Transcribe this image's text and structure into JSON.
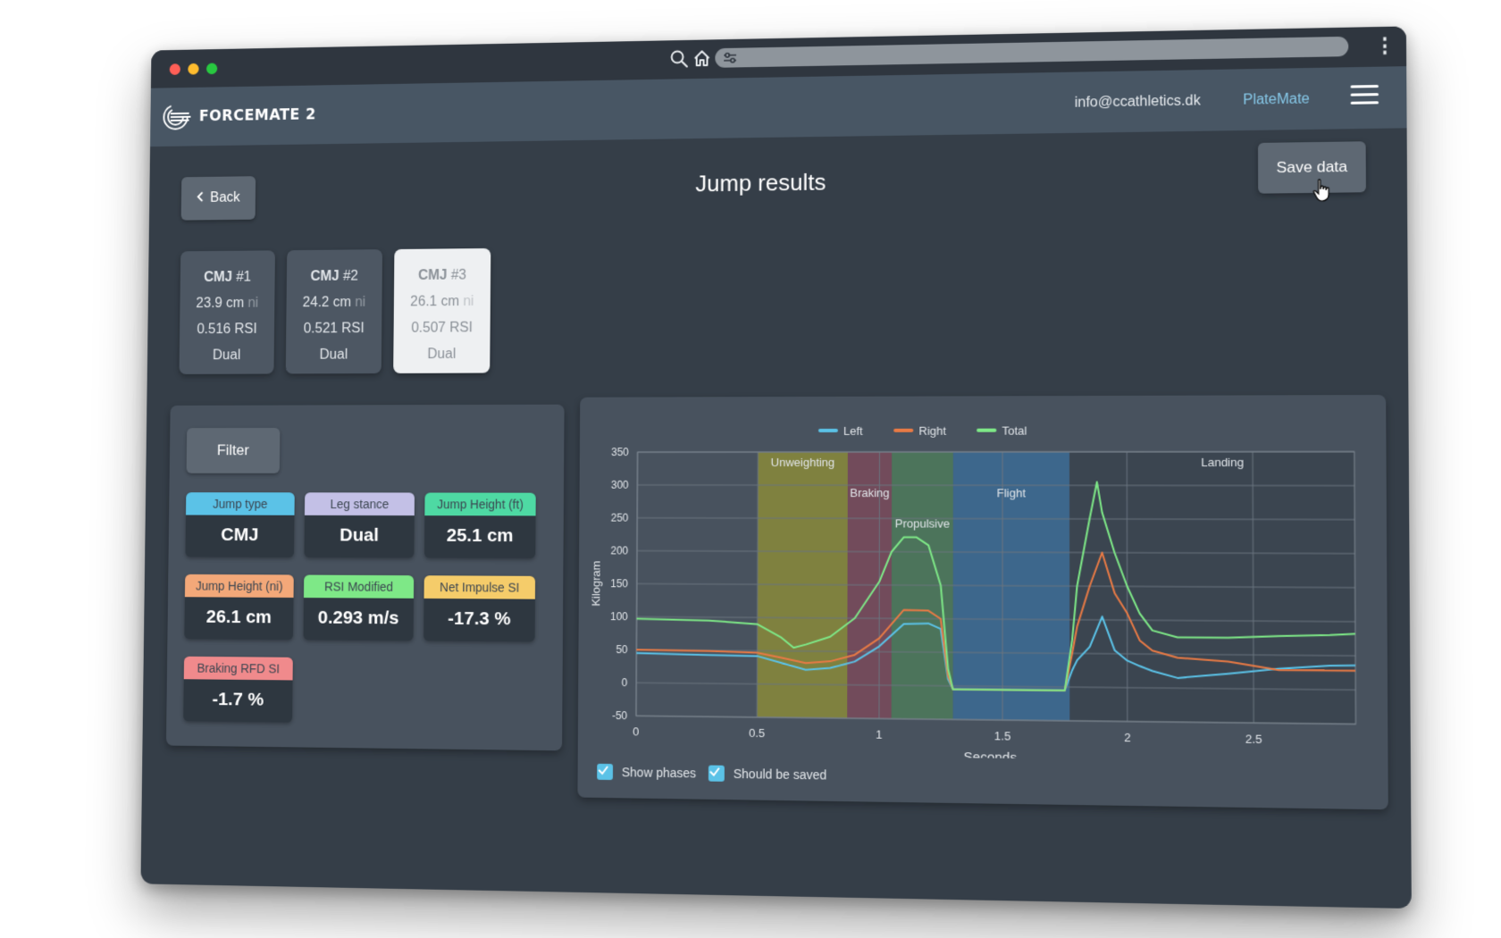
{
  "app": {
    "name": "FORCEMATE 2",
    "email": "info@ccathletics.dk",
    "platemate": "PlateMate"
  },
  "page": {
    "title": "Jump results",
    "back_label": "Back",
    "save_label": "Save data"
  },
  "jumps": [
    {
      "type": "CMJ",
      "num": "#1",
      "height": "23.9 cm",
      "unit": "ni",
      "rsi_value": "0.516",
      "rsi_label": "RSI",
      "stance": "Dual",
      "selected": false
    },
    {
      "type": "CMJ",
      "num": "#2",
      "height": "24.2 cm",
      "unit": "ni",
      "rsi_value": "0.521",
      "rsi_label": "RSI",
      "stance": "Dual",
      "selected": false
    },
    {
      "type": "CMJ",
      "num": "#3",
      "height": "26.1 cm",
      "unit": "ni",
      "rsi_value": "0.507",
      "rsi_label": "RSI",
      "stance": "Dual",
      "selected": true
    }
  ],
  "filter": {
    "button_label": "Filter",
    "metrics": [
      {
        "label": "Jump type",
        "value": "CMJ",
        "color": "#5bc2e7"
      },
      {
        "label": "Leg stance",
        "value": "Dual",
        "color": "#c3c0e6"
      },
      {
        "label": "Jump Height (ft)",
        "value": "25.1 cm",
        "color": "#4ed9a3"
      },
      {
        "label": "Jump Height (ni)",
        "value": "26.1 cm",
        "color": "#f3a879"
      },
      {
        "label": "RSI Modified",
        "value": "0.293 m/s",
        "color": "#7ee887"
      },
      {
        "label": "Net Impulse SI",
        "value": "-17.3 %",
        "color": "#f5cc6a"
      },
      {
        "label": "Braking RFD SI",
        "value": "-1.7 %",
        "color": "#f08a8c"
      }
    ]
  },
  "options": {
    "show_phases": "Show phases",
    "should_be_saved": "Should be saved"
  },
  "colors": {
    "left": "#5bc2e7",
    "right": "#e87a45",
    "total": "#7ee887",
    "window_bg": "#353e48",
    "panel_bg": "#48525e",
    "accent": "#86c8e8"
  },
  "icons": [
    "search-icon",
    "home-icon",
    "tune-icon",
    "more-vertical-icon",
    "hamburger-menu-icon",
    "chevron-left-icon",
    "pointer-cursor-icon",
    "checkbox-checked-icon"
  ],
  "chart_data": {
    "type": "line",
    "xlabel": "Seconds",
    "ylabel": "Kilogram",
    "xlim": [
      0,
      2.9
    ],
    "ylim": [
      -50,
      350
    ],
    "xticks": [
      0,
      0.5,
      1,
      1.5,
      2,
      2.5
    ],
    "yticks": [
      -50,
      0,
      50,
      100,
      150,
      200,
      250,
      300,
      350
    ],
    "grid": true,
    "legend_position": "top-center",
    "phases": [
      {
        "name": "Unweighting",
        "start": 0.5,
        "end": 0.87,
        "color": "#8a8a3a"
      },
      {
        "name": "Braking",
        "start": 0.87,
        "end": 1.05,
        "color": "#7a4a5a"
      },
      {
        "name": "Propulsive",
        "start": 1.05,
        "end": 1.3,
        "color": "#4d7a5a"
      },
      {
        "name": "Flight",
        "start": 1.3,
        "end": 1.77,
        "color": "#3c6b94"
      },
      {
        "name": "Landing",
        "start": 1.77,
        "end": 2.9,
        "color": "#3a434d"
      }
    ],
    "series": [
      {
        "name": "Left",
        "x": [
          0,
          0.3,
          0.5,
          0.6,
          0.7,
          0.8,
          0.9,
          1.0,
          1.1,
          1.2,
          1.25,
          1.28,
          1.3,
          1.5,
          1.75,
          1.78,
          1.8,
          1.85,
          1.9,
          1.95,
          2.0,
          2.05,
          2.1,
          2.2,
          2.4,
          2.6,
          2.8,
          2.9
        ],
        "y": [
          45,
          43,
          42,
          32,
          22,
          25,
          35,
          58,
          92,
          93,
          85,
          10,
          -5,
          -5,
          -5,
          25,
          40,
          60,
          105,
          55,
          40,
          32,
          25,
          15,
          22,
          30,
          35,
          36
        ]
      },
      {
        "name": "Right",
        "x": [
          0,
          0.3,
          0.5,
          0.6,
          0.7,
          0.8,
          0.9,
          1.0,
          1.1,
          1.2,
          1.25,
          1.28,
          1.3,
          1.5,
          1.75,
          1.78,
          1.8,
          1.85,
          1.9,
          1.95,
          2.0,
          2.05,
          2.1,
          2.2,
          2.4,
          2.6,
          2.8,
          2.9
        ],
        "y": [
          50,
          49,
          47,
          40,
          32,
          35,
          45,
          70,
          113,
          112,
          100,
          15,
          -5,
          -5,
          -5,
          50,
          90,
          150,
          200,
          140,
          110,
          70,
          55,
          45,
          40,
          28,
          28,
          28
        ]
      },
      {
        "name": "Total",
        "x": [
          0,
          0.3,
          0.5,
          0.6,
          0.65,
          0.7,
          0.8,
          0.9,
          1.0,
          1.05,
          1.1,
          1.15,
          1.2,
          1.25,
          1.28,
          1.3,
          1.5,
          1.75,
          1.78,
          1.8,
          1.85,
          1.88,
          1.9,
          1.95,
          2.0,
          2.05,
          2.1,
          2.2,
          2.4,
          2.6,
          2.8,
          2.9
        ],
        "y": [
          97,
          95,
          90,
          70,
          55,
          60,
          72,
          100,
          155,
          200,
          222,
          222,
          210,
          150,
          25,
          -5,
          -5,
          -5,
          70,
          150,
          250,
          305,
          260,
          200,
          150,
          110,
          85,
          75,
          75,
          78,
          80,
          82
        ]
      }
    ]
  }
}
